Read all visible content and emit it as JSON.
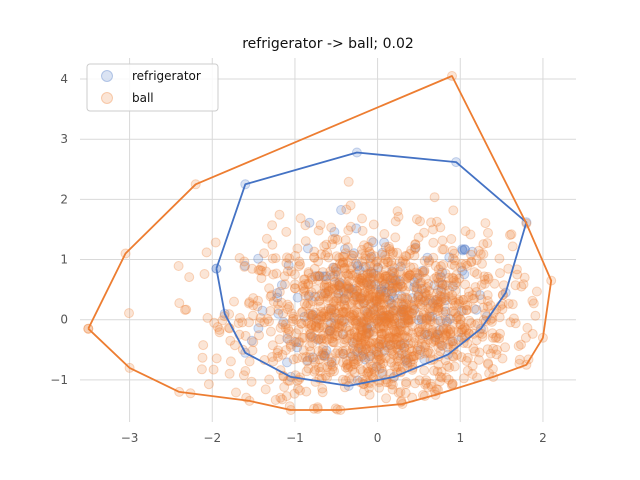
{
  "chart_data": {
    "type": "scatter",
    "title": "refrigerator -> ball; 0.02",
    "xlabel": "",
    "ylabel": "",
    "xlim": [
      -3.6,
      2.4
    ],
    "ylim": [
      -1.7,
      4.35
    ],
    "xticks": [
      -3,
      -2,
      -1,
      0,
      1,
      2
    ],
    "yticks": [
      -1,
      0,
      1,
      2,
      3,
      4
    ],
    "grid": true,
    "legend_position": "top-left",
    "series": [
      {
        "name": "refrigerator",
        "color": "#4472c4",
        "hull": [
          [
            -1.95,
            0.85
          ],
          [
            -1.6,
            2.25
          ],
          [
            -0.25,
            2.78
          ],
          [
            0.95,
            2.62
          ],
          [
            1.8,
            1.62
          ],
          [
            1.55,
            0.45
          ],
          [
            1.25,
            -0.15
          ],
          [
            0.85,
            -0.58
          ],
          [
            0.2,
            -0.95
          ],
          [
            -0.35,
            -1.1
          ],
          [
            -1.05,
            -0.95
          ],
          [
            -1.6,
            -0.55
          ],
          [
            -1.85,
            0.1
          ],
          [
            -1.95,
            0.85
          ]
        ],
        "cloud": {
          "cx": 0.0,
          "cy": 0.2,
          "sx": 0.7,
          "sy": 0.65,
          "n": 180
        }
      },
      {
        "name": "ball",
        "color": "#ed7d31",
        "hull": [
          [
            -3.5,
            -0.15
          ],
          [
            -3.05,
            1.1
          ],
          [
            -2.2,
            2.25
          ],
          [
            0.9,
            4.05
          ],
          [
            1.8,
            1.6
          ],
          [
            2.1,
            0.65
          ],
          [
            2.0,
            -0.3
          ],
          [
            1.8,
            -0.75
          ],
          [
            1.4,
            -0.95
          ],
          [
            0.7,
            -1.25
          ],
          [
            0.3,
            -1.4
          ],
          [
            -0.45,
            -1.5
          ],
          [
            -1.05,
            -1.5
          ],
          [
            -1.55,
            -1.35
          ],
          [
            -2.4,
            -1.2
          ],
          [
            -3.0,
            -0.8
          ],
          [
            -3.5,
            -0.15
          ]
        ],
        "cloud": {
          "cx": 0.0,
          "cy": 0.0,
          "sx": 0.8,
          "sy": 0.7,
          "n": 1400
        }
      }
    ]
  }
}
